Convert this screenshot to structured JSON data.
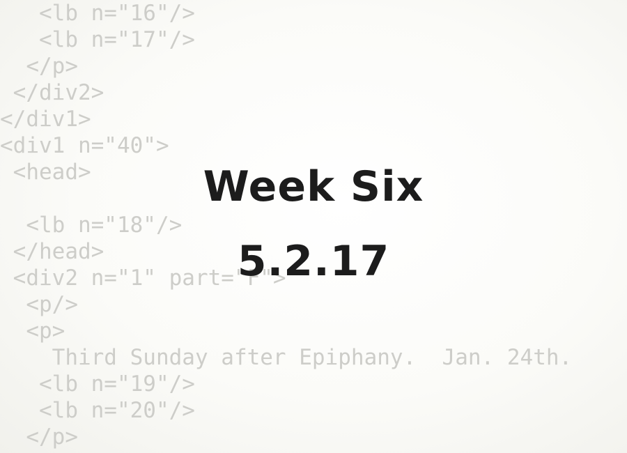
{
  "code_lines": [
    "   <lb n=\"16\"/>",
    "   <lb n=\"17\"/>",
    "  </p>",
    " </div2>",
    "</div1>",
    "<div1 n=\"40\">",
    " <head>",
    "",
    "  <lb n=\"18\"/>",
    " </head>",
    " <div2 n=\"1\" part=\"F\">",
    "  <p/>",
    "  <p>",
    "    Third Sunday after Epiphany.  Jan. 24th.",
    "   <lb n=\"19\"/>",
    "   <lb n=\"20\"/>",
    "  </p>"
  ],
  "title": "Week Six",
  "date": "5.2.17"
}
